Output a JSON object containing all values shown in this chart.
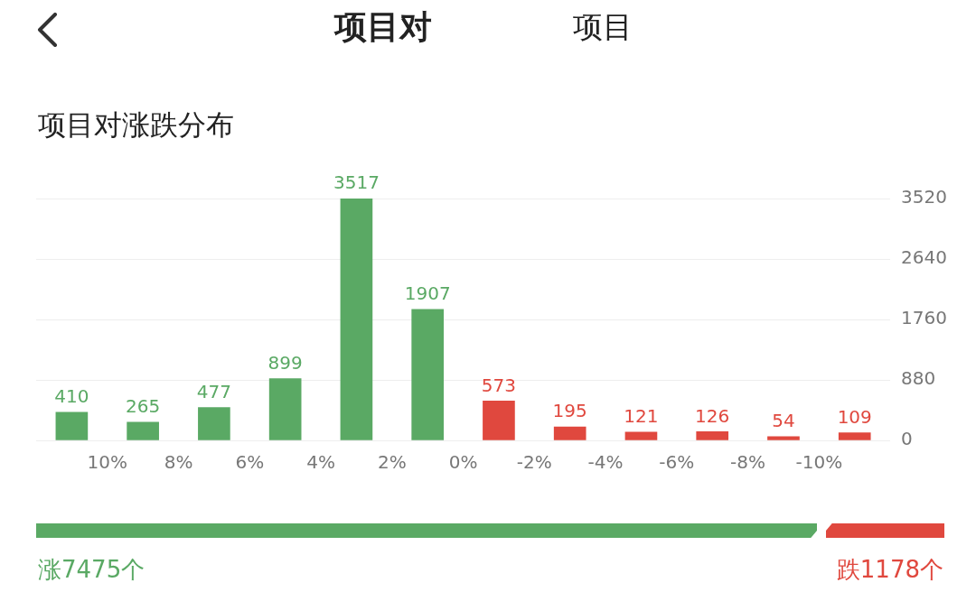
{
  "chart_data": {
    "type": "bar",
    "title": "项目对涨跌分布",
    "x": [
      11,
      9,
      7,
      5,
      3,
      1,
      -1,
      -3,
      -5,
      -7,
      -9,
      -11
    ],
    "values": [
      410,
      265,
      477,
      899,
      3517,
      1907,
      573,
      195,
      121,
      126,
      54,
      109
    ],
    "colors": [
      "#5aa964",
      "#5aa964",
      "#5aa964",
      "#5aa964",
      "#5aa964",
      "#5aa964",
      "#e0483e",
      "#e0483e",
      "#e0483e",
      "#e0483e",
      "#e0483e",
      "#e0483e"
    ],
    "data_labels": true,
    "xlim": [
      12,
      -12
    ],
    "xticks": [
      {
        "value": 10,
        "label": "10%"
      },
      {
        "value": 8,
        "label": "8%"
      },
      {
        "value": 6,
        "label": "6%"
      },
      {
        "value": 4,
        "label": "4%"
      },
      {
        "value": 2,
        "label": "2%"
      },
      {
        "value": 0,
        "label": "0%"
      },
      {
        "value": -2,
        "label": "-2%"
      },
      {
        "value": -4,
        "label": "-4%"
      },
      {
        "value": -6,
        "label": "-6%"
      },
      {
        "value": -8,
        "label": "-8%"
      },
      {
        "value": -10,
        "label": "-10%"
      }
    ],
    "ylim": [
      0,
      3520
    ],
    "yticks": [
      0,
      880,
      1760,
      2640,
      3520
    ],
    "grid": "y",
    "annotations": [
      "项目对",
      "项目",
      "涨7475个",
      "跌1178个"
    ]
  }
}
